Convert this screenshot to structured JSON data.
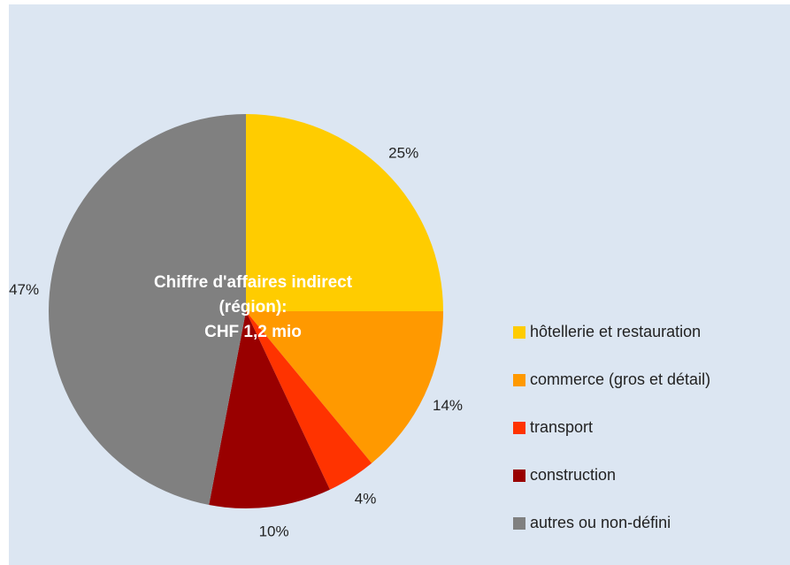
{
  "chart_data": {
    "type": "pie",
    "title": [
      "Chiffre d'affaires indirect",
      "(région):",
      "CHF 1,2 mio"
    ],
    "categories": [
      "hôtellerie et restauration",
      "commerce (gros et détail)",
      "transport",
      "construction",
      "autres ou non-défini"
    ],
    "values": [
      25,
      14,
      4,
      10,
      47
    ],
    "value_labels": [
      "25%",
      "14%",
      "4%",
      "10%",
      "47%"
    ],
    "colors": [
      "#ffcc00",
      "#ff9900",
      "#ff3300",
      "#990000",
      "#808080"
    ],
    "legend": "right"
  }
}
